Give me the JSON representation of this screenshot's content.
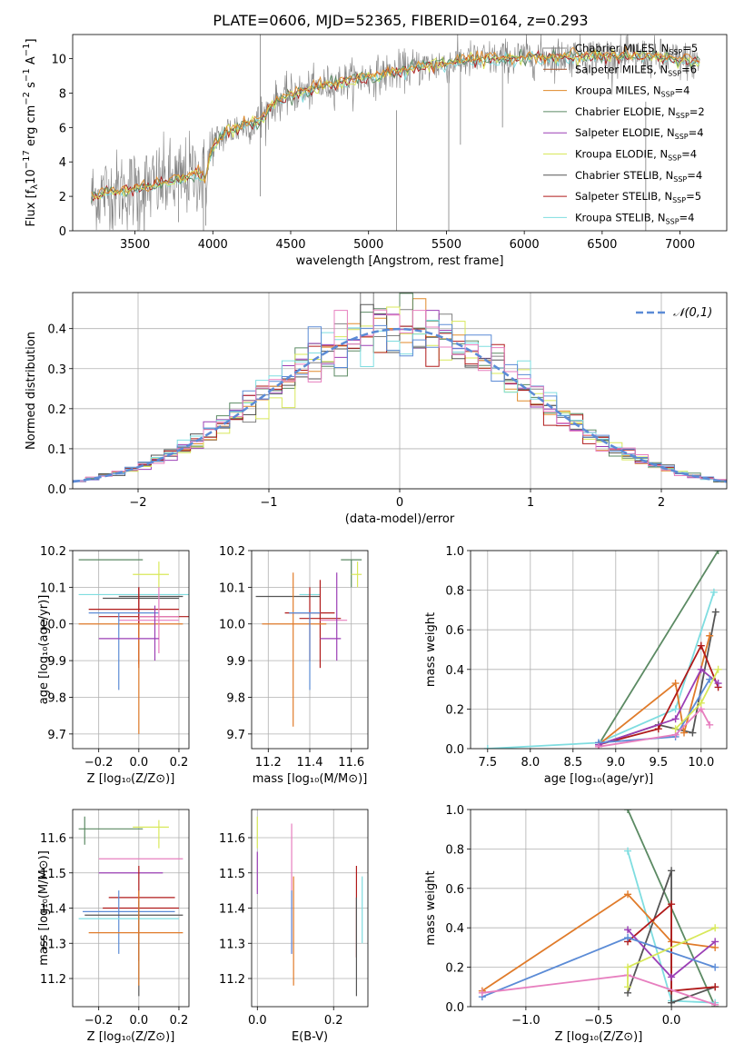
{
  "figure": {
    "title": "PLATE=0606, MJD=52365, FIBERID=0164, z=0.293",
    "colors": {
      "chabrier_miles": "#808080",
      "salpeter_miles": "#a0522d",
      "kroupa_miles": "#e08a2a",
      "chabrier_elodie": "#5b8a63",
      "salpeter_elodie": "#9b3fb5",
      "kroupa_elodie": "#d8e85a",
      "chabrier_stelib": "#555555",
      "salpeter_stelib": "#b01a1a",
      "kroupa_stelib": "#7fdde0",
      "gauss": "#5b8bd6",
      "blue": "#5b8bd6",
      "pink": "#e77fbf",
      "orange": "#e07b2a"
    }
  },
  "chart_data": [
    {
      "id": "spectrum",
      "type": "line",
      "xlabel": "wavelength [Angstrom, rest frame]",
      "ylabel": "Flux [f_λ10^−17 erg cm^−2 s^−1 A^−1]",
      "xlim": [
        3100,
        7300
      ],
      "ylim": [
        0,
        11.4
      ],
      "xticks": [
        3500,
        4000,
        4500,
        5000,
        5500,
        6000,
        6500,
        7000
      ],
      "yticks": [
        0,
        2,
        4,
        6,
        8,
        10
      ],
      "grid": false,
      "legend_position": "top-right",
      "legend": [
        {
          "label": "Chabrier MILES, N",
          "sub": "SSP",
          "eq": "=5",
          "color": "#808080"
        },
        {
          "label": "Salpeter MILES, N",
          "sub": "SSP",
          "eq": "=6",
          "color": "#a0522d"
        },
        {
          "label": "Kroupa MILES, N",
          "sub": "SSP",
          "eq": "=4",
          "color": "#e08a2a"
        },
        {
          "label": "Chabrier ELODIE, N",
          "sub": "SSP",
          "eq": "=2",
          "color": "#5b8a63"
        },
        {
          "label": "Salpeter ELODIE, N",
          "sub": "SSP",
          "eq": "=4",
          "color": "#9b3fb5"
        },
        {
          "label": "Kroupa ELODIE, N",
          "sub": "SSP",
          "eq": "=4",
          "color": "#d8e85a"
        },
        {
          "label": "Chabrier STELIB, N",
          "sub": "SSP",
          "eq": "=4",
          "color": "#555555"
        },
        {
          "label": "Salpeter STELIB, N",
          "sub": "SSP",
          "eq": "=5",
          "color": "#b01a1a"
        },
        {
          "label": "Kroupa STELIB, N",
          "sub": "SSP",
          "eq": "=4",
          "color": "#7fdde0"
        }
      ],
      "continuum": {
        "x": [
          3220,
          3300,
          3400,
          3500,
          3600,
          3700,
          3800,
          3900,
          3950,
          4000,
          4100,
          4200,
          4300,
          4400,
          4500,
          4600,
          4700,
          4800,
          4900,
          5000,
          5100,
          5200,
          5300,
          5400,
          5500,
          5600,
          5700,
          5800,
          5900,
          6000,
          6200,
          6400,
          6600,
          6800,
          7000,
          7120
        ],
        "y": [
          1.9,
          2.2,
          2.3,
          2.4,
          2.6,
          2.8,
          3.0,
          3.4,
          3.0,
          5.0,
          5.8,
          6.1,
          6.4,
          7.5,
          7.9,
          8.1,
          8.4,
          8.6,
          8.8,
          8.9,
          9.1,
          9.3,
          9.5,
          9.6,
          9.7,
          9.9,
          9.9,
          10.0,
          10.0,
          10.1,
          10.1,
          10.2,
          10.1,
          10.1,
          9.9,
          9.8
        ]
      }
    },
    {
      "id": "residuals",
      "type": "histogram",
      "xlabel": "(data-model)/error",
      "ylabel": "Normed distribution",
      "xlim": [
        -2.5,
        2.5
      ],
      "ylim": [
        0,
        0.49
      ],
      "xticks": [
        -2,
        -1,
        0,
        1,
        2
      ],
      "yticks": [
        0.0,
        0.1,
        0.2,
        0.3,
        0.4
      ],
      "grid": true,
      "legend_position": "top-right",
      "legend": [
        {
          "label": "𝒩(0,1)",
          "color": "#5b8bd6"
        }
      ],
      "bin_width": 0.1,
      "bin_start": -2.5
    },
    {
      "id": "age_vs_Z",
      "type": "errorbar",
      "xlabel": "Z [log₁₀(Z/Z⊙)]",
      "ylabel": "age  [log₁₀(age/yr)]",
      "xlim": [
        -0.33,
        0.25
      ],
      "ylim": [
        9.66,
        10.2
      ],
      "xticks": [
        -0.2,
        0.0,
        0.2
      ],
      "yticks": [
        9.7,
        9.8,
        9.9,
        10.0,
        10.1,
        10.2
      ],
      "grid": true
    },
    {
      "id": "age_vs_mass",
      "type": "errorbar",
      "xlabel": "mass [log₁₀(M/M⊙)]",
      "ylabel": "",
      "xlim": [
        11.12,
        11.68
      ],
      "ylim": [
        9.66,
        10.2
      ],
      "xticks": [
        11.2,
        11.4,
        11.6
      ],
      "yticks": [
        9.7,
        9.8,
        9.9,
        10.0,
        10.1,
        10.2
      ],
      "grid": true
    },
    {
      "id": "weight_vs_age",
      "type": "line",
      "xlabel": "age  [log₁₀(age/yr)]",
      "ylabel": "mass weight",
      "xlim": [
        7.3,
        10.3
      ],
      "ylim": [
        0,
        1.0
      ],
      "xticks": [
        7.5,
        8.0,
        8.5,
        9.0,
        9.5,
        10.0
      ],
      "yticks": [
        0.0,
        0.2,
        0.4,
        0.6,
        0.8,
        1.0
      ],
      "grid": true
    },
    {
      "id": "mass_vs_Z",
      "type": "errorbar",
      "xlabel": "Z [log₁₀(Z/Z⊙)]",
      "ylabel": "mass [log₁₀(M/M⊙)]",
      "xlim": [
        -0.33,
        0.25
      ],
      "ylim": [
        11.12,
        11.68
      ],
      "xticks": [
        -0.2,
        0.0,
        0.2
      ],
      "yticks": [
        11.2,
        11.3,
        11.4,
        11.5,
        11.6
      ],
      "grid": true
    },
    {
      "id": "mass_vs_ebv",
      "type": "errorbar",
      "xlabel": "E(B-V)",
      "ylabel": "",
      "xlim": [
        -0.015,
        0.29
      ],
      "ylim": [
        11.12,
        11.68
      ],
      "xticks": [
        0.0,
        0.2
      ],
      "yticks": [
        11.2,
        11.3,
        11.4,
        11.5,
        11.6
      ],
      "grid": true
    },
    {
      "id": "weight_vs_Z",
      "type": "line",
      "xlabel": "Z [log₁₀(Z/Z⊙)]",
      "ylabel": "mass weight",
      "xlim": [
        -1.38,
        0.38
      ],
      "ylim": [
        0,
        1.0
      ],
      "xticks": [
        -1.0,
        -0.5,
        0.0
      ],
      "yticks": [
        0.0,
        0.2,
        0.4,
        0.6,
        0.8,
        1.0
      ],
      "grid": true
    }
  ]
}
